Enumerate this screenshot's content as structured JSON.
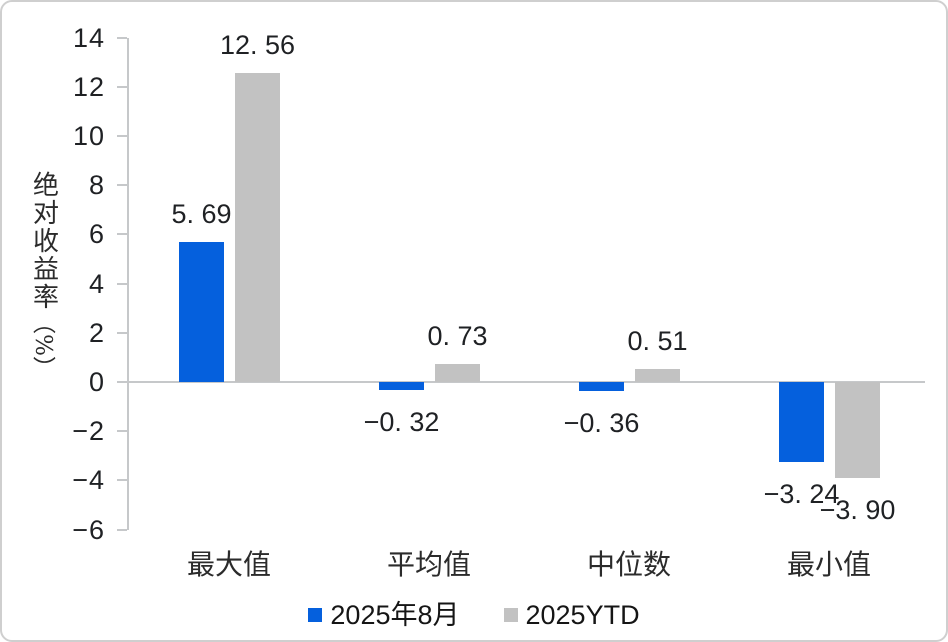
{
  "chart_data": {
    "type": "bar",
    "title": "",
    "ylabel": "绝对收益率（%）",
    "ylabel_chars": [
      "绝",
      "对",
      "收",
      "益",
      "率"
    ],
    "ylabel_unit": "（%）",
    "ylim": [
      -6,
      14
    ],
    "ytick_step": 2,
    "yticks": [
      14,
      12,
      10,
      8,
      6,
      4,
      2,
      0,
      -2,
      -4,
      -6
    ],
    "grid": "zero-baseline-only",
    "legend_position": "bottom-center",
    "categories": [
      "最大值",
      "平均值",
      "中位数",
      "最小值"
    ],
    "series": [
      {
        "name": "2025年8月",
        "color": "#0560DD",
        "values": [
          5.69,
          -0.32,
          -0.36,
          -3.24
        ],
        "labels": [
          "5. 69",
          "−0. 32",
          "−0. 36",
          "−3. 24"
        ]
      },
      {
        "name": "2025YTD",
        "color": "#C2C2C2",
        "values": [
          12.56,
          0.73,
          0.51,
          -3.9
        ],
        "labels": [
          "12. 56",
          "0. 73",
          "0. 51",
          "−3. 90"
        ]
      }
    ]
  },
  "colors": {
    "bar_blue": "#0560DD",
    "bar_gray": "#C2C2C2",
    "axis": "#C6C8CA",
    "text": "#1F2124",
    "card_border": "#CFCFCF"
  }
}
